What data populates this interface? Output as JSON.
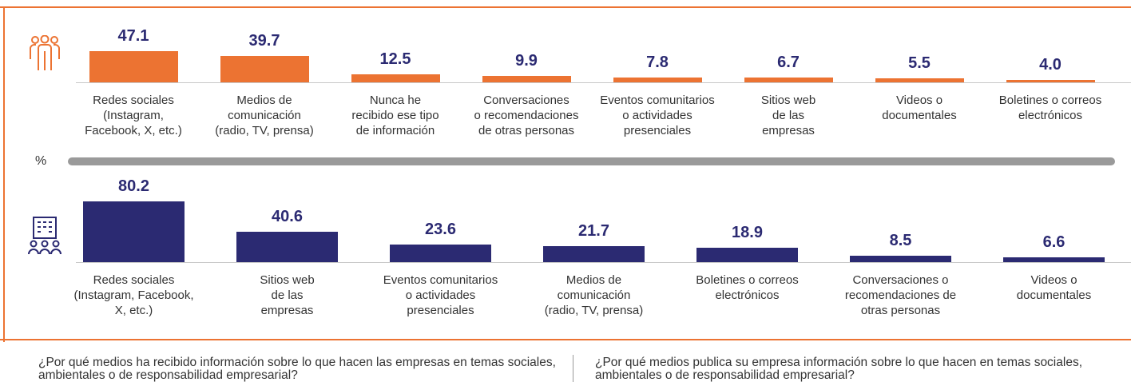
{
  "unit": "%",
  "chart_data": [
    {
      "type": "bar",
      "color": "#ec7332",
      "ylim": [
        0,
        60
      ],
      "categories": [
        "Redes sociales\n(Instagram,\nFacebook, X, etc.)",
        "Medios de\ncomunicación\n(radio, TV, prensa)",
        "Nunca he\nrecibido ese tipo\nde información",
        "Conversaciones\no recomendaciones\nde otras personas",
        "Eventos comunitarios\no actividades\npresenciales",
        "Sitios web\nde las\nempresas",
        "Videos o\ndocumentales",
        "Boletines o correos\nelectrónicos"
      ],
      "values": [
        47.1,
        39.7,
        12.5,
        9.9,
        7.8,
        6.7,
        5.5,
        4.0
      ],
      "value_labels": [
        "47.1",
        "39.7",
        "12.5",
        "9.9",
        "7.8",
        "6.7",
        "5.5",
        "4.0"
      ],
      "caption": "¿Por qué medios ha recibido información sobre lo que hacen las empresas en temas sociales, ambientales o de responsabilidad empresarial?"
    },
    {
      "type": "bar",
      "color": "#2b2a72",
      "ylim": [
        0,
        90
      ],
      "categories": [
        "Redes sociales\n(Instagram, Facebook,\nX, etc.)",
        "Sitios web\nde las\nempresas",
        "Eventos comunitarios\no actividades\npresenciales",
        "Medios de\ncomunicación\n(radio, TV, prensa)",
        "Boletines o correos\nelectrónicos",
        "Conversaciones o\nrecomendaciones de\notras personas",
        "Videos o\ndocumentales"
      ],
      "values": [
        80.2,
        40.6,
        23.6,
        21.7,
        18.9,
        8.5,
        6.6
      ],
      "value_labels": [
        "80.2",
        "40.6",
        "23.6",
        "21.7",
        "18.9",
        "8.5",
        "6.6"
      ],
      "caption": "¿Por qué medios publica su empresa información sobre lo que hacen en temas sociales, ambientales o de responsabilidad empresarial?"
    }
  ]
}
